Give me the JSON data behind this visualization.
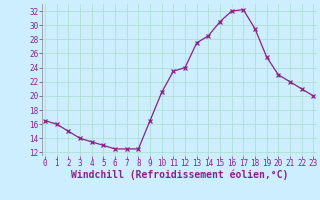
{
  "x": [
    0,
    1,
    2,
    3,
    4,
    5,
    6,
    7,
    8,
    9,
    10,
    11,
    12,
    13,
    14,
    15,
    16,
    17,
    18,
    19,
    20,
    21,
    22,
    23
  ],
  "y": [
    16.5,
    16.0,
    15.0,
    14.0,
    13.5,
    13.0,
    12.5,
    12.5,
    12.5,
    16.5,
    20.5,
    23.5,
    24.0,
    27.5,
    28.5,
    30.5,
    32.0,
    32.2,
    29.5,
    25.5,
    23.0,
    22.0,
    21.0,
    20.0
  ],
  "xlim": [
    -0.3,
    23.3
  ],
  "ylim": [
    11.5,
    33.0
  ],
  "yticks": [
    12,
    14,
    16,
    18,
    20,
    22,
    24,
    26,
    28,
    30,
    32
  ],
  "xticks": [
    0,
    1,
    2,
    3,
    4,
    5,
    6,
    7,
    8,
    9,
    10,
    11,
    12,
    13,
    14,
    15,
    16,
    17,
    18,
    19,
    20,
    21,
    22,
    23
  ],
  "line_color": "#882288",
  "marker": "x",
  "bg_color": "#cceeff",
  "grid_color": "#aaddcc",
  "xlabel": "Windchill (Refroidissement éolien,°C)",
  "tick_fontsize": 5.5,
  "label_fontsize": 7.0,
  "fig_width": 3.2,
  "fig_height": 2.0,
  "dpi": 100
}
